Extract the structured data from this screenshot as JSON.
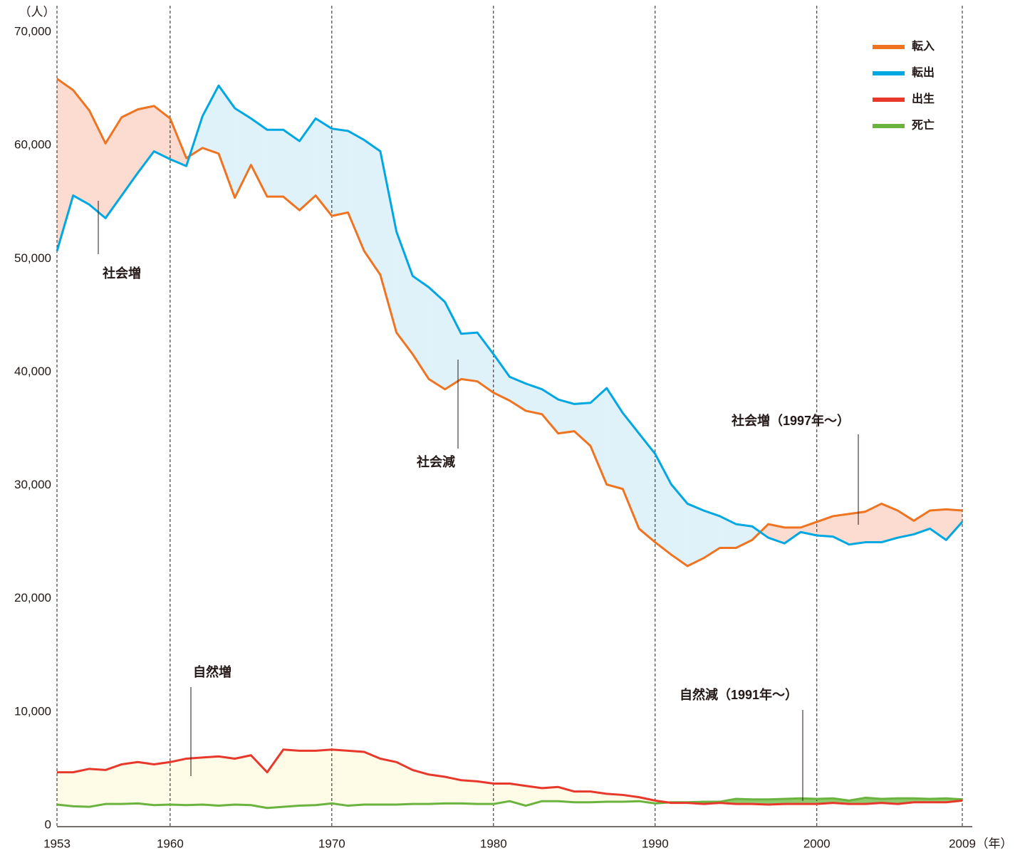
{
  "chart_data": {
    "type": "line",
    "y_label": "（人）",
    "x_label": "（年）",
    "x": [
      1953,
      1954,
      1955,
      1956,
      1957,
      1958,
      1959,
      1960,
      1961,
      1962,
      1963,
      1964,
      1965,
      1966,
      1967,
      1968,
      1969,
      1970,
      1971,
      1972,
      1973,
      1974,
      1975,
      1976,
      1977,
      1978,
      1979,
      1980,
      1981,
      1982,
      1983,
      1984,
      1985,
      1986,
      1987,
      1988,
      1989,
      1990,
      1991,
      1992,
      1993,
      1994,
      1995,
      1996,
      1997,
      1998,
      1999,
      2000,
      2001,
      2002,
      2003,
      2004,
      2005,
      2006,
      2007,
      2008,
      2009
    ],
    "series": [
      {
        "name": "転入",
        "color": "#ee7421",
        "values": [
          66000,
          65000,
          63200,
          60300,
          62600,
          63300,
          63600,
          62500,
          59000,
          59900,
          59400,
          55500,
          58400,
          55600,
          55600,
          54400,
          55700,
          53900,
          54200,
          50800,
          48700,
          43600,
          41700,
          39500,
          38600,
          39500,
          39300,
          38300,
          37600,
          36700,
          36400,
          34700,
          34900,
          33600,
          30200,
          29800,
          26300,
          25100,
          24000,
          23000,
          23700,
          24600,
          24600,
          25300,
          26700,
          26400,
          26400,
          26900,
          27400,
          27600,
          27800,
          28500,
          27900,
          27000,
          27900,
          28000,
          27900
        ]
      },
      {
        "name": "転出",
        "color": "#00a7e1",
        "values": [
          50800,
          55700,
          54900,
          53700,
          55700,
          57700,
          59600,
          58900,
          58300,
          62700,
          65400,
          63400,
          62500,
          61500,
          61500,
          60500,
          62500,
          61600,
          61400,
          60600,
          59600,
          52500,
          48600,
          47600,
          46300,
          43500,
          43600,
          41700,
          39700,
          39100,
          38600,
          37700,
          37300,
          37400,
          38700,
          36500,
          34700,
          32900,
          30200,
          28500,
          27900,
          27400,
          26700,
          26500,
          25500,
          25000,
          26000,
          25700,
          25600,
          24900,
          25100,
          25100,
          25500,
          25800,
          26300,
          25300,
          26900
        ]
      },
      {
        "name": "出生",
        "color": "#e8382b",
        "values": [
          4800,
          4800,
          5100,
          5000,
          5500,
          5700,
          5500,
          5700,
          6000,
          6100,
          6200,
          6000,
          6300,
          4800,
          6800,
          6700,
          6700,
          6800,
          6700,
          6600,
          6000,
          5700,
          5000,
          4600,
          4400,
          4100,
          4000,
          3800,
          3800,
          3600,
          3400,
          3500,
          3100,
          3100,
          2900,
          2800,
          2600,
          2300,
          2100,
          2100,
          2000,
          2100,
          2000,
          2000,
          1950,
          2000,
          2000,
          2000,
          2100,
          2000,
          2000,
          2100,
          2000,
          2150,
          2150,
          2150,
          2300
        ]
      },
      {
        "name": "死亡",
        "color": "#6ab33e",
        "values": [
          1950,
          1800,
          1750,
          2000,
          2000,
          2050,
          1900,
          1950,
          1900,
          1950,
          1850,
          1950,
          1900,
          1650,
          1750,
          1850,
          1900,
          2050,
          1850,
          1950,
          1950,
          1950,
          2000,
          2000,
          2050,
          2050,
          2000,
          2000,
          2250,
          1850,
          2250,
          2250,
          2150,
          2150,
          2200,
          2200,
          2250,
          2050,
          2150,
          2150,
          2200,
          2200,
          2450,
          2400,
          2400,
          2450,
          2500,
          2450,
          2500,
          2300,
          2550,
          2450,
          2500,
          2500,
          2450,
          2500,
          2400
        ]
      }
    ],
    "xlim": [
      1953,
      2009
    ],
    "xticks": [
      1953,
      1960,
      1970,
      1980,
      1990,
      2000,
      2009
    ],
    "ylim": [
      0,
      70000
    ],
    "yticks": [
      0,
      {
        "value": 10000,
        "label": "10,000"
      },
      {
        "value": 20000,
        "label": "20,000"
      },
      {
        "value": 30000,
        "label": "30,000"
      },
      {
        "value": 40000,
        "label": "40,000"
      },
      {
        "value": 50000,
        "label": "50,000"
      },
      {
        "value": 60000,
        "label": "60,000"
      },
      {
        "value": 70000,
        "label": "70,000"
      }
    ],
    "grid": true,
    "legend": "top-right",
    "annotations": [
      "社会増",
      "社会減",
      "社会増（1997年～）",
      "自然増",
      "自然減（1991年～）"
    ]
  }
}
